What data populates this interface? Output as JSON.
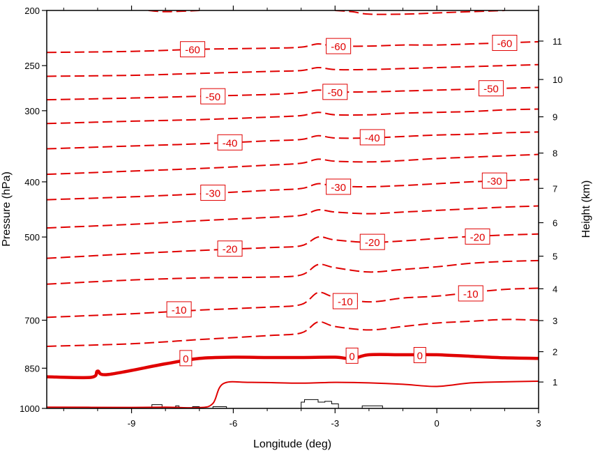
{
  "chart_data": {
    "type": "line",
    "description_axes": "longitude-pressure cross section",
    "xlabel": "Longitude (deg)",
    "ylabel_left": "Pressure (hPa)",
    "ylabel_right": "Height (km)",
    "xlim": [
      -11.5,
      3
    ],
    "ylim_pressure": [
      1000,
      200
    ],
    "pressure_scale": "log",
    "x_ticks": [
      -9,
      -6,
      -3,
      0,
      3
    ],
    "x_tick_labels": [
      "-9",
      "-6",
      "-3",
      "0",
      "3"
    ],
    "pressure_ticks": [
      1000,
      850,
      700,
      500,
      400,
      300,
      250,
      200
    ],
    "pressure_tick_labels": [
      "1000",
      "850",
      "700",
      "500",
      "400",
      "300",
      "250",
      "200"
    ],
    "height_ticks_km": [
      1,
      2,
      3,
      4,
      5,
      6,
      7,
      8,
      9,
      10,
      11
    ],
    "height_tick_labels": [
      "1",
      "2",
      "3",
      "4",
      "5",
      "6",
      "7",
      "8",
      "9",
      "10",
      "11"
    ],
    "contour_interval_degC": 5,
    "colors": {
      "contour": "#e00000",
      "terrain": "#000000",
      "frame": "#000000"
    },
    "series": [
      {
        "value": 5,
        "style": "solid-thin",
        "x": [
          -11.5,
          -9,
          -8,
          -7,
          -6.6,
          -6.3,
          -5.5,
          -4,
          -3,
          -2,
          -1,
          0,
          1,
          2,
          3
        ],
        "y": [
          995,
          996,
          995,
          997,
          980,
          905,
          900,
          903,
          900,
          902,
          907,
          915,
          902,
          898,
          896
        ]
      },
      {
        "value": 0,
        "style": "solid-thick",
        "x": [
          -11.5,
          -10.2,
          -10,
          -9.7,
          -8,
          -7,
          -6,
          -5,
          -4,
          -3,
          -2.5,
          -2,
          -1,
          0,
          1,
          2,
          3
        ],
        "y": [
          880,
          882,
          860,
          872,
          835,
          817,
          813,
          814,
          814,
          813,
          818,
          805,
          805,
          805,
          810,
          815,
          817
        ]
      },
      {
        "value": -5,
        "style": "dashed",
        "x": [
          -11.5,
          -9,
          -7,
          -5,
          -4,
          -3.5,
          -3,
          -2,
          -1,
          0,
          1,
          2,
          3
        ],
        "y": [
          778,
          770,
          757,
          745,
          737,
          705,
          718,
          728,
          718,
          708,
          703,
          698,
          700
        ]
      },
      {
        "value": -10,
        "style": "dashed",
        "x": [
          -11.5,
          -9,
          -7,
          -5,
          -4,
          -3.5,
          -3,
          -2,
          -1,
          0,
          1,
          2,
          3
        ],
        "y": [
          692,
          682,
          672,
          664,
          657,
          626,
          638,
          650,
          640,
          635,
          626,
          618,
          615
        ]
      },
      {
        "value": -15,
        "style": "dashed",
        "x": [
          -11.5,
          -9,
          -7,
          -5,
          -4,
          -3.5,
          -3,
          -2,
          -1,
          0,
          1,
          2,
          3
        ],
        "y": [
          605,
          595,
          590,
          588,
          583,
          559,
          566,
          576,
          570,
          564,
          556,
          552,
          550
        ]
      },
      {
        "value": -20,
        "style": "dashed",
        "x": [
          -11.5,
          -9,
          -7,
          -5,
          -4,
          -3.5,
          -3,
          -2,
          -1,
          0,
          1,
          2,
          3
        ],
        "y": [
          545,
          535,
          528,
          522,
          518,
          500,
          506,
          511,
          508,
          503,
          499,
          496,
          494
        ]
      },
      {
        "value": -25,
        "style": "dashed",
        "x": [
          -11.5,
          -9,
          -7,
          -5,
          -4,
          -3.5,
          -3,
          -2,
          -1,
          0,
          1,
          2,
          3
        ],
        "y": [
          482,
          475,
          468,
          462,
          458,
          448,
          452,
          455,
          452,
          449,
          446,
          443,
          441
        ]
      },
      {
        "value": -30,
        "style": "dashed",
        "x": [
          -11.5,
          -9,
          -7,
          -5,
          -4,
          -3.5,
          -3,
          -2,
          -1,
          0,
          1,
          2,
          3
        ],
        "y": [
          430,
          425,
          420,
          414,
          411,
          403,
          407,
          408,
          406,
          403,
          400,
          398,
          396
        ]
      },
      {
        "value": -35,
        "style": "dashed",
        "x": [
          -11.5,
          -9,
          -7,
          -5,
          -4,
          -3.5,
          -3,
          -2,
          -1,
          0,
          1,
          2,
          3
        ],
        "y": [
          388,
          383,
          379,
          374,
          371,
          365,
          368,
          369,
          367,
          364,
          362,
          360,
          358
        ]
      },
      {
        "value": -40,
        "style": "dashed",
        "x": [
          -11.5,
          -9,
          -7,
          -5,
          -4,
          -3.5,
          -3,
          -2,
          -1,
          0,
          1,
          2,
          3
        ],
        "y": [
          350,
          346,
          343,
          339,
          337,
          332,
          335,
          335,
          333,
          331,
          330,
          328,
          327
        ]
      },
      {
        "value": -45,
        "style": "dashed",
        "x": [
          -11.5,
          -9,
          -7,
          -5,
          -4,
          -3.5,
          -3,
          -2,
          -1,
          0,
          1,
          2,
          3
        ],
        "y": [
          316,
          313,
          311,
          308,
          306,
          302,
          305,
          305,
          303,
          302,
          301,
          299,
          298
        ]
      },
      {
        "value": -50,
        "style": "dashed",
        "x": [
          -11.5,
          -9,
          -7,
          -5,
          -4,
          -3.5,
          -3,
          -2,
          -1,
          0,
          1,
          2,
          3
        ],
        "y": [
          287,
          285,
          283,
          281,
          279,
          276,
          278,
          278,
          277,
          276,
          275,
          274,
          273
        ]
      },
      {
        "value": -55,
        "style": "dashed",
        "x": [
          -11.5,
          -9,
          -7,
          -5,
          -4,
          -3.5,
          -3,
          -2,
          -1,
          0,
          1,
          2,
          3
        ],
        "y": [
          261,
          260,
          258,
          256,
          255,
          252,
          254,
          254,
          253,
          252,
          251,
          250,
          249
        ]
      },
      {
        "value": -60,
        "style": "dashed",
        "x": [
          -11.5,
          -9,
          -7,
          -5,
          -4,
          -3.5,
          -3,
          -2,
          -1,
          0,
          1,
          2,
          3
        ],
        "y": [
          237,
          236,
          234,
          233,
          232,
          229,
          231,
          231,
          230,
          230,
          229,
          228,
          227
        ]
      },
      {
        "value": -65,
        "style": "dashed",
        "x": [
          -8.5,
          -8,
          -7
        ],
        "y": [
          200,
          201,
          200
        ]
      },
      {
        "value": -65,
        "style": "dashed",
        "x": [
          -3,
          -2.5,
          -2,
          -1,
          0,
          1,
          2
        ],
        "y": [
          200,
          201,
          203,
          203,
          202,
          201,
          200
        ]
      }
    ],
    "contour_labels": [
      {
        "text": "-60",
        "x": -7.2,
        "y": 234
      },
      {
        "text": "-60",
        "x": -2.9,
        "y": 231
      },
      {
        "text": "-60",
        "x": 2.0,
        "y": 228
      },
      {
        "text": "-50",
        "x": -6.6,
        "y": 283
      },
      {
        "text": "-50",
        "x": -3.0,
        "y": 278
      },
      {
        "text": "-50",
        "x": 1.6,
        "y": 274
      },
      {
        "text": "-40",
        "x": -6.1,
        "y": 341
      },
      {
        "text": "-40",
        "x": -1.9,
        "y": 334
      },
      {
        "text": "-40",
        "x": 0.0,
        "y": 0.0,
        "hidden": true
      },
      {
        "text": "-30",
        "x": -6.6,
        "y": 418
      },
      {
        "text": "-30",
        "x": -2.9,
        "y": 408
      },
      {
        "text": "-30",
        "x": 1.7,
        "y": 398
      },
      {
        "text": "-20",
        "x": -6.1,
        "y": 524
      },
      {
        "text": "-20",
        "x": -1.9,
        "y": 510
      },
      {
        "text": "-20",
        "x": 1.2,
        "y": 499
      },
      {
        "text": "-10",
        "x": -7.6,
        "y": 670
      },
      {
        "text": "-10",
        "x": -2.7,
        "y": 648
      },
      {
        "text": "-10",
        "x": 1.0,
        "y": 628
      },
      {
        "text": "0",
        "x": -7.4,
        "y": 816
      },
      {
        "text": "0",
        "x": -2.5,
        "y": 808
      },
      {
        "text": "0",
        "x": -0.5,
        "y": 806
      }
    ],
    "terrain": {
      "x": [
        -11.5,
        -8.4,
        -8.4,
        -8.1,
        -8.1,
        -7.7,
        -7.7,
        -7.6,
        -7.6,
        -7.2,
        -7.2,
        -7.0,
        -7.0,
        -6.6,
        -6.6,
        -6.2,
        -6.2,
        -4.0,
        -4.0,
        -3.9,
        -3.9,
        -3.7,
        -3.7,
        -3.5,
        -3.5,
        -3.3,
        -3.3,
        -3.1,
        -3.1,
        -2.9,
        -2.9,
        -2.2,
        -2.2,
        -1.6,
        -1.6,
        3
      ],
      "y": [
        1000,
        1000,
        985,
        985,
        1000,
        1000,
        990,
        990,
        1000,
        1000,
        993,
        993,
        1000,
        1000,
        993,
        993,
        1000,
        1000,
        975,
        975,
        965,
        965,
        965,
        965,
        975,
        975,
        972,
        972,
        982,
        982,
        1000,
        1000,
        990,
        990,
        1000,
        1000
      ]
    }
  }
}
